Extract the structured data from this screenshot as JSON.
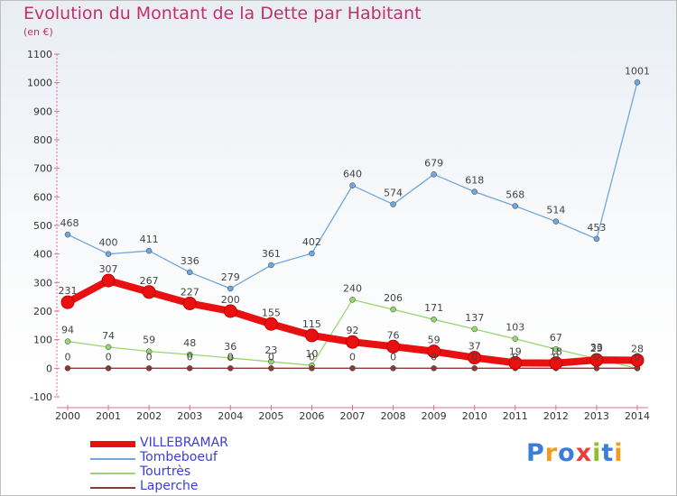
{
  "title": "Evolution du Montant de la Dette par Habitant",
  "subtitle": "(en €)",
  "logo": {
    "text": "Proxiti",
    "colors": [
      "#3b7dd8",
      "#f29c1f",
      "#3b7dd8",
      "#ea3d3d",
      "#8dbf2e",
      "#3b7dd8",
      "#f29c1f"
    ]
  },
  "chart_data": {
    "type": "line",
    "x": [
      2000,
      2001,
      2002,
      2003,
      2004,
      2005,
      2006,
      2007,
      2008,
      2009,
      2010,
      2011,
      2012,
      2013,
      2014
    ],
    "ylim": [
      -100,
      1100
    ],
    "yticks": [
      -100,
      0,
      100,
      200,
      300,
      400,
      500,
      600,
      700,
      800,
      900,
      1000,
      1100
    ],
    "grid": false,
    "legend_position": "bottom-left",
    "series": [
      {
        "name": "VILLEBRAMAR",
        "color": "#e81010",
        "values": [
          231,
          307,
          267,
          227,
          200,
          155,
          115,
          92,
          76,
          59,
          37,
          19,
          18,
          29,
          28
        ]
      },
      {
        "name": "Tombeboeuf",
        "color": "#6fa8dc",
        "values": [
          468,
          400,
          411,
          336,
          279,
          361,
          402,
          640,
          574,
          679,
          618,
          568,
          514,
          453,
          1001
        ]
      },
      {
        "name": "Tourtrès",
        "color": "#9ad66e",
        "values": [
          94,
          74,
          59,
          48,
          36,
          23,
          10,
          240,
          206,
          171,
          137,
          103,
          67,
          33,
          0
        ]
      },
      {
        "name": "Laperche",
        "color": "#8b3a3a",
        "values": [
          0,
          0,
          0,
          0,
          0,
          0,
          0,
          0,
          0,
          0,
          0,
          0,
          0,
          0,
          0
        ]
      }
    ]
  }
}
